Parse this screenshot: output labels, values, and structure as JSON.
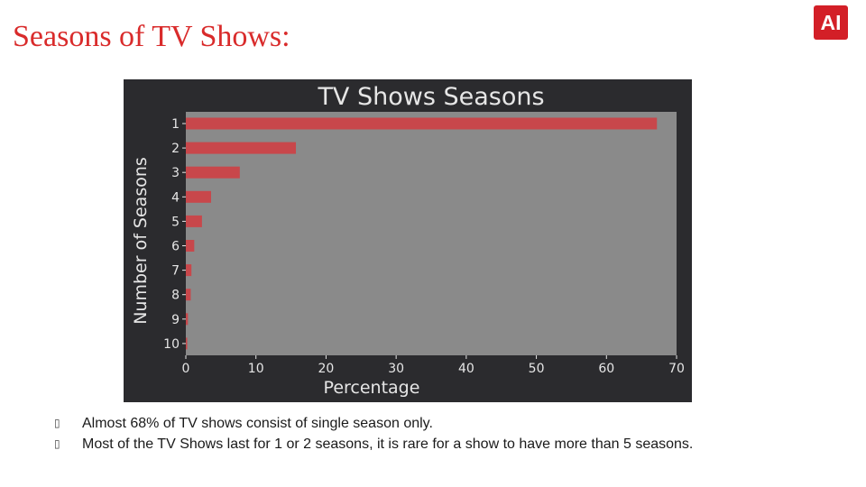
{
  "slide": {
    "title": "Seasons of TV Shows:",
    "logo_text": "AI",
    "brand_color": "#d31f27",
    "title_color": "#d92b2b"
  },
  "bullets": [
    {
      "icon": "bullet-icon",
      "text": "Almost 68% of TV shows consist of single season only."
    },
    {
      "icon": "bullet-icon",
      "text": "Most of the TV Shows last for 1 or 2 seasons, it is rare for a show to have more than 5 seasons."
    }
  ],
  "chart_data": {
    "type": "bar",
    "orientation": "horizontal",
    "title": "TV Shows Seasons",
    "xlabel": "Percentage",
    "ylabel": "Number of Seasons",
    "categories": [
      "1",
      "2",
      "3",
      "4",
      "5",
      "6",
      "7",
      "8",
      "9",
      "10"
    ],
    "values": [
      67.2,
      15.7,
      7.7,
      3.6,
      2.3,
      1.2,
      0.8,
      0.7,
      0.3,
      0.2
    ],
    "xlim": [
      0,
      70
    ],
    "xticks": [
      "0",
      "10",
      "20",
      "30",
      "40",
      "50",
      "60",
      "70"
    ],
    "grid": false,
    "legend": "none",
    "bar_color": "#c8474b",
    "plot_bg": "#8a8a8a",
    "figure_bg": "#2b2b2e",
    "text_color": "#e6e6e6"
  }
}
